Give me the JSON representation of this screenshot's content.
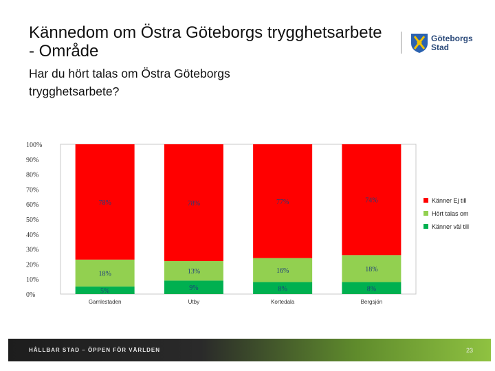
{
  "slide": {
    "title": "Kännedom om Östra Göteborgs trygghetsarbete - Område",
    "subtitle": "Har du hört talas om Östra Göteborgs trygghetsarbete?",
    "logo_line1": "Göteborgs",
    "logo_line2": "Stad",
    "footer_text": "HÅLLBAR STAD – ÖPPEN FÖR VÄRLDEN",
    "page_number": "23"
  },
  "colors": {
    "red": "#ff0000",
    "light_green": "#92d050",
    "green": "#00b050"
  },
  "chart_data": {
    "type": "bar",
    "stacked": true,
    "categories": [
      "Gamlestaden",
      "Utby",
      "Kortedala",
      "Bergsjön"
    ],
    "series": [
      {
        "name": "Känner väl till",
        "color": "#00b050",
        "values": [
          5,
          9,
          8,
          8
        ],
        "labels": [
          "5%",
          "9%",
          "8%",
          "8%"
        ]
      },
      {
        "name": "Hört talas om",
        "color": "#92d050",
        "values": [
          18,
          13,
          16,
          18
        ],
        "labels": [
          "18%",
          "13%",
          "16%",
          "18%"
        ]
      },
      {
        "name": "Känner Ej till",
        "color": "#ff0000",
        "values": [
          78,
          78,
          77,
          74
        ],
        "labels": [
          "78%",
          "78%",
          "77%",
          "74%"
        ]
      }
    ],
    "yticks": [
      "0%",
      "10%",
      "20%",
      "30%",
      "40%",
      "50%",
      "60%",
      "70%",
      "80%",
      "90%",
      "100%"
    ],
    "ylim": [
      0,
      100
    ],
    "grid": false,
    "legend_position": "right",
    "legend_order": [
      "Känner Ej till",
      "Hört talas om",
      "Känner väl till"
    ]
  }
}
